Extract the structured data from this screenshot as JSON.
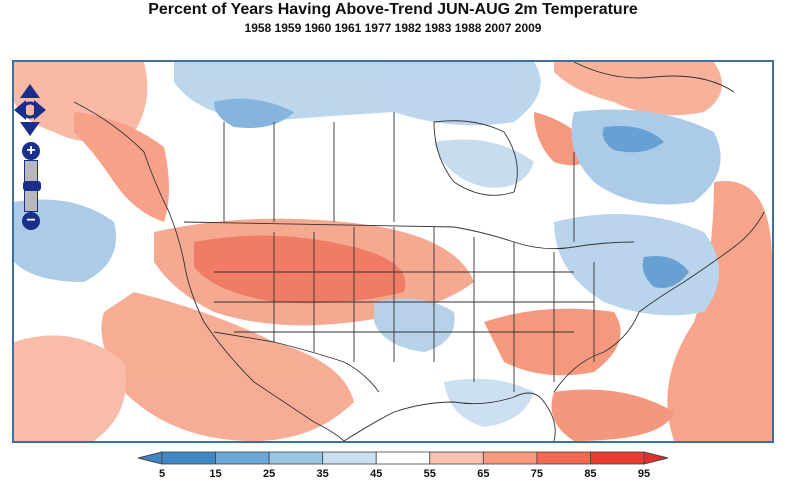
{
  "title": "Percent of Years Having Above-Trend JUN-AUG 2m Temperature",
  "subtitle": "1958 1959 1960 1961 1977 1982 1983 1988 2007 2009",
  "map": {
    "controls": {
      "zoom_in_label": "+",
      "zoom_out_label": "−"
    }
  },
  "colorbar": {
    "ticks": [
      "5",
      "15",
      "25",
      "35",
      "45",
      "55",
      "65",
      "75",
      "85",
      "95"
    ],
    "colors": [
      "#3f88c5",
      "#6ba7d7",
      "#9cc6e6",
      "#c9dff2",
      "#ffffff",
      "#f9c2b0",
      "#f7997f",
      "#f26a52",
      "#e83a2e"
    ],
    "under_color": "#3f88c5",
    "over_color": "#e0302b"
  }
}
